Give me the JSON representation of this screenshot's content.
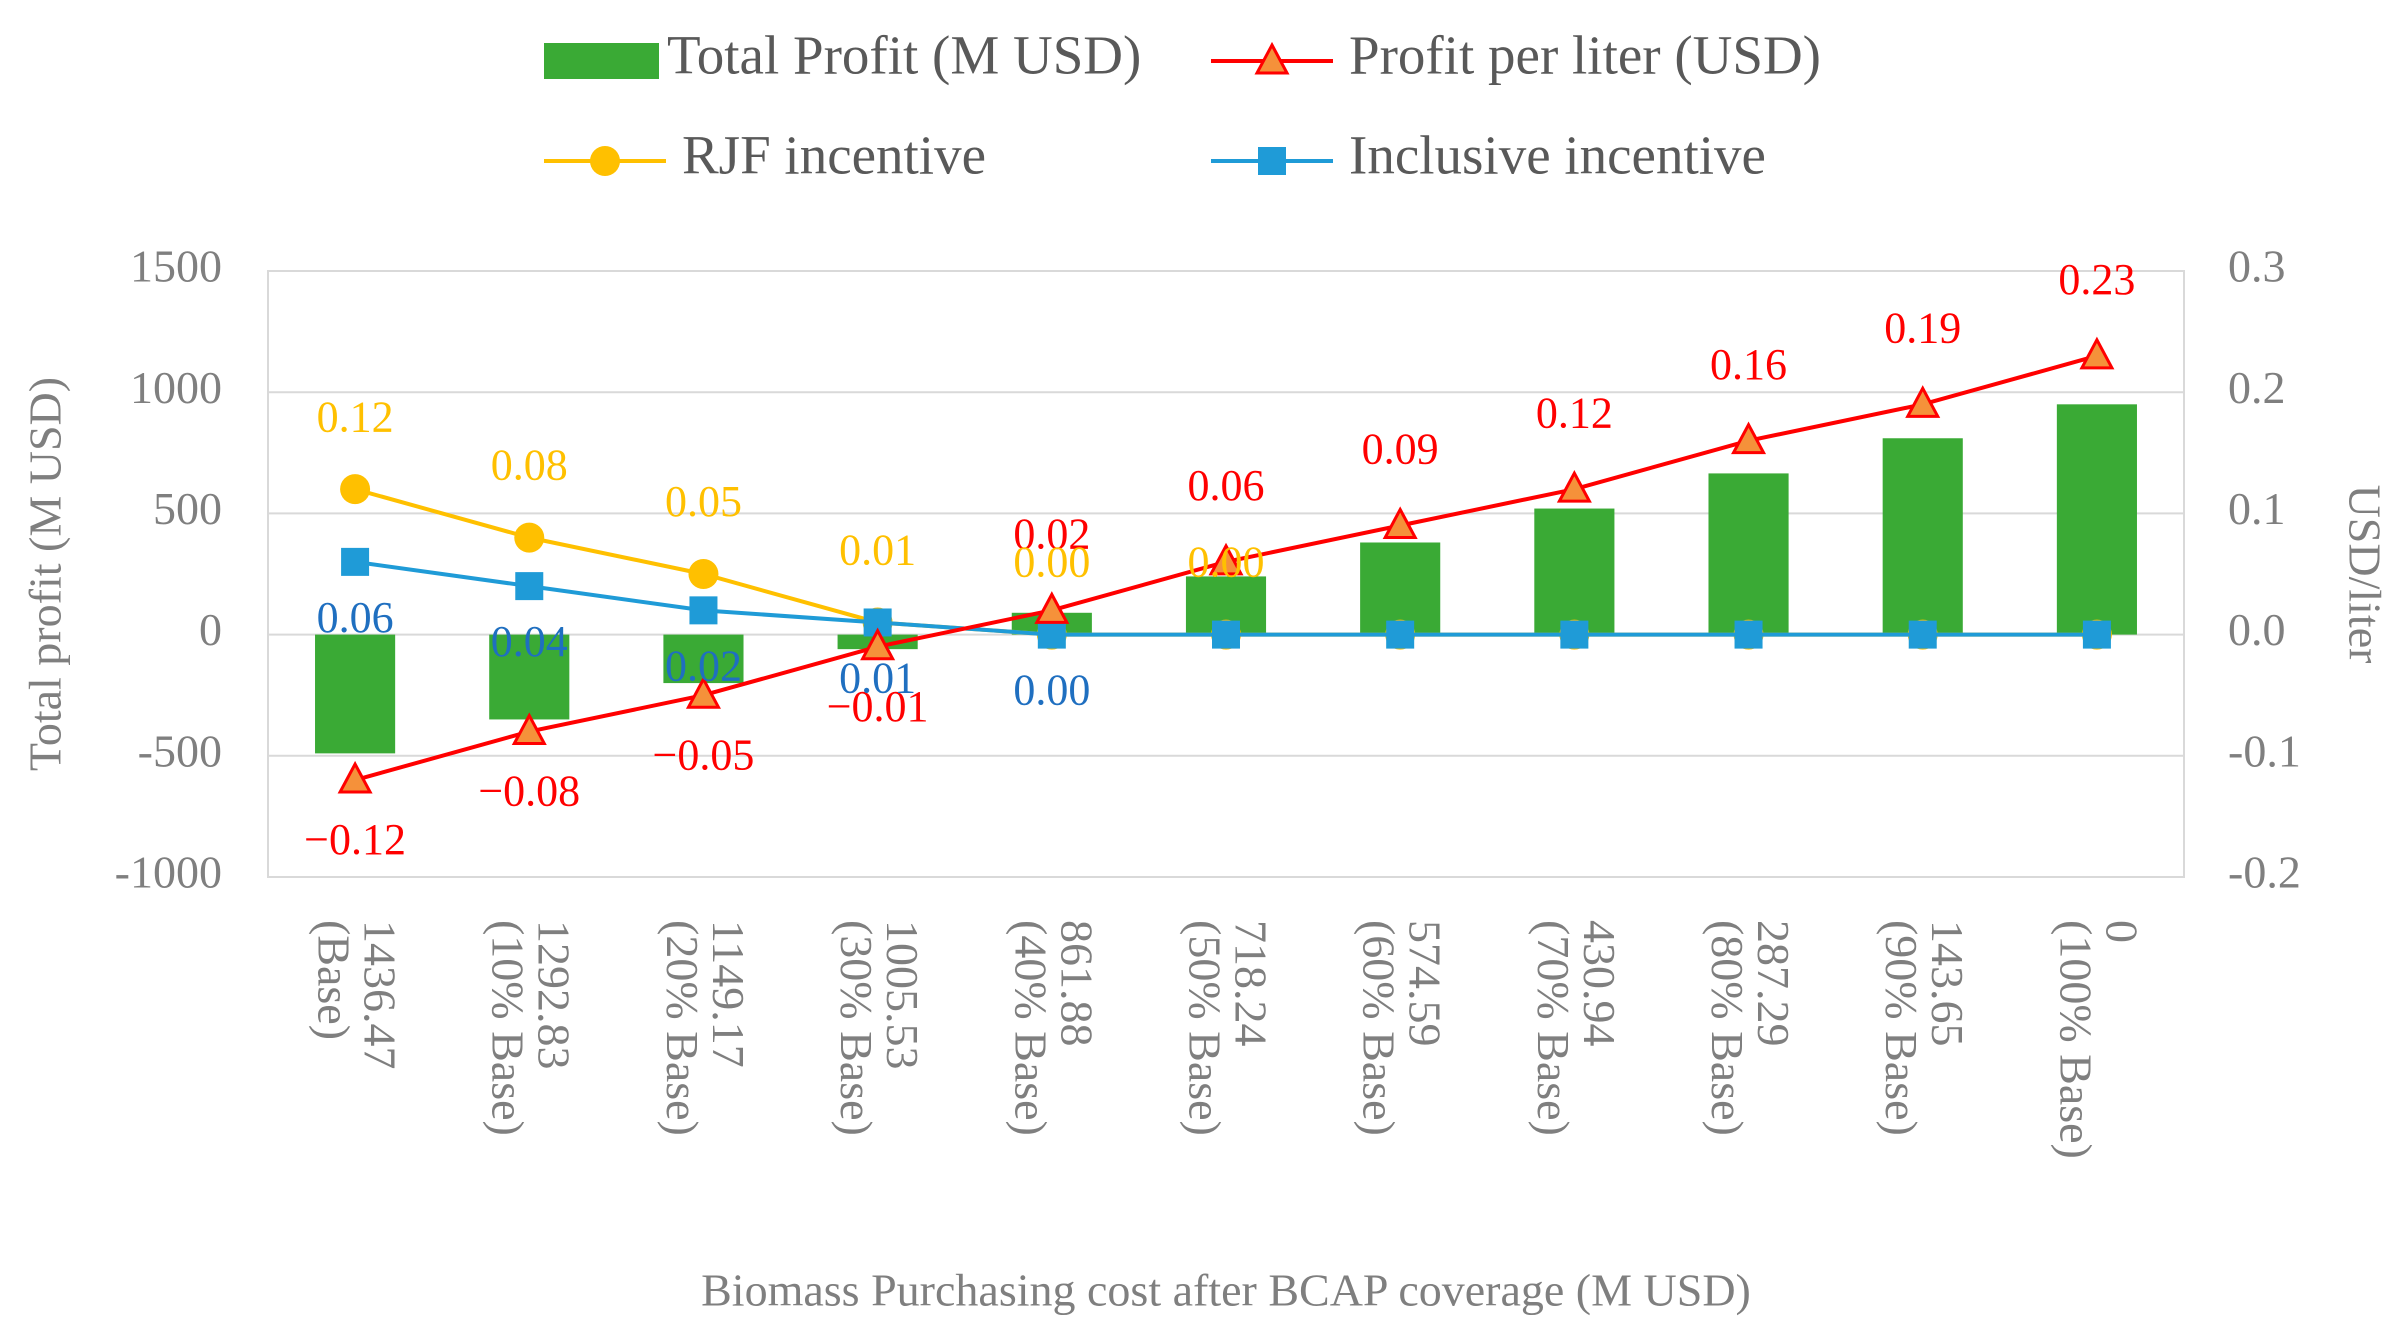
{
  "chart_data": {
    "type": "combo",
    "xlabel": "Biomass Purchasing cost after BCAP coverage (M USD)",
    "ylabel": "Total profit (M USD)",
    "y2label": "USD/liter",
    "categories": [
      [
        "1436.47",
        "(Base)"
      ],
      [
        "1292.83",
        "(10% Base)"
      ],
      [
        "1149.17",
        "(20% Base)"
      ],
      [
        "1005.53",
        "(30% Base)"
      ],
      [
        "861.88",
        "(40% Base)"
      ],
      [
        "718.24",
        "(50% Base)"
      ],
      [
        "574.59",
        "(60% Base)"
      ],
      [
        "430.94",
        "(70% Base)"
      ],
      [
        "287.29",
        "(80% Base)"
      ],
      [
        "143.65",
        "(90% Base)"
      ],
      [
        "0",
        "(100% Base)"
      ]
    ],
    "ylim": [
      -1000,
      1500
    ],
    "yticks": [
      -1000,
      -500,
      0,
      500,
      1000,
      1500
    ],
    "y2lim": [
      -0.2,
      0.3
    ],
    "y2ticks": [
      -0.2,
      -0.1,
      {
        "value": 0,
        "label": "0.0"
      },
      0.1,
      0.2,
      0.3
    ],
    "grid": true,
    "legend": "top",
    "series": [
      {
        "name": "Total Profit (M USD)",
        "type": "bar",
        "color": "#3aaa35",
        "values": [
          -490,
          -350,
          -200,
          -60,
          90,
          240,
          380,
          520,
          665,
          810,
          950
        ]
      },
      {
        "name": "Profit per liter (USD)",
        "type": "line",
        "axis": "y2",
        "color": "#ff0000",
        "marker": "triangle",
        "marker_color": "#f5913a",
        "label_color": "#ff0000",
        "values": [
          -0.12,
          -0.08,
          -0.05,
          -0.01,
          0.02,
          0.06,
          0.09,
          0.12,
          0.16,
          0.19,
          0.23
        ],
        "value_labels": [
          "−0.12",
          "−0.08",
          "−0.05",
          "−0.01",
          "0.02",
          "0.06",
          "0.09",
          "0.12",
          "0.16",
          "0.19",
          "0.23"
        ]
      },
      {
        "name": "RJF incentive",
        "type": "line",
        "axis": "y2",
        "color": "#ffc000",
        "marker": "circle",
        "marker_color": "#ffc000",
        "label_color": "#ffc000",
        "values": [
          0.12,
          0.08,
          0.05,
          0.01,
          0,
          0,
          0,
          0,
          0,
          0,
          0
        ],
        "value_labels": [
          "0.12",
          "0.08",
          "0.05",
          "0.01",
          "0.00",
          "0.00",
          null,
          null,
          null,
          null,
          null
        ]
      },
      {
        "name": "Inclusive incentive",
        "type": "line",
        "axis": "y2",
        "color": "#1f9bd7",
        "marker": "square",
        "marker_color": "#1f9bd7",
        "label_color": "#1f6fc0",
        "values": [
          0.06,
          0.04,
          0.02,
          0.01,
          0,
          0,
          0,
          0,
          0,
          0,
          0
        ],
        "value_labels": [
          "0.06",
          "0.04",
          "0.02",
          "0.01",
          "0.00",
          null,
          null,
          null,
          null,
          null,
          null
        ]
      }
    ]
  }
}
